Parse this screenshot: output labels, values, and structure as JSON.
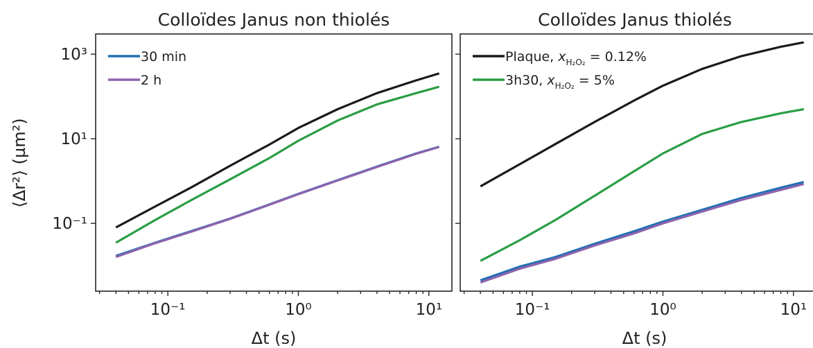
{
  "colors": {
    "black": "#1a1a1a",
    "green": "#2a9d44",
    "blue": "#1f6fb2",
    "purple": "#8e63ad"
  },
  "chart_data": [
    {
      "type": "line",
      "title": "Colloïdes Janus non thiolés",
      "xlabel": "Δt (s)",
      "ylabel": "⟨Δr²⟩ (µm²)",
      "xscale": "log",
      "yscale": "log",
      "xlim": [
        0.028,
        15
      ],
      "ylim": [
        0.0025,
        3000
      ],
      "xticks": [
        {
          "value": 0.1,
          "label": "10⁻¹"
        },
        {
          "value": 1,
          "label": "10⁰"
        },
        {
          "value": 10,
          "label": "10¹"
        }
      ],
      "yticks": [
        {
          "value": 0.1,
          "label": "10⁻¹"
        },
        {
          "value": 10,
          "label": "10¹"
        },
        {
          "value": 1000,
          "label": "10³"
        }
      ],
      "legend": {
        "position": "top-left",
        "entries": [
          {
            "label": "30 min",
            "color": "blue"
          },
          {
            "label": "2 h",
            "color": "purple"
          }
        ]
      },
      "series": [
        {
          "color": "black",
          "x": [
            0.04,
            0.08,
            0.15,
            0.3,
            0.6,
            1,
            2,
            4,
            8,
            12
          ],
          "y": [
            0.08,
            0.25,
            0.7,
            2.3,
            7.3,
            18,
            50,
            120,
            240,
            350
          ]
        },
        {
          "color": "green",
          "x": [
            0.04,
            0.08,
            0.15,
            0.3,
            0.6,
            1,
            2,
            4,
            8,
            12
          ],
          "y": [
            0.035,
            0.12,
            0.35,
            1.1,
            3.5,
            9,
            27,
            65,
            120,
            170
          ]
        },
        {
          "name": "30 min",
          "color": "blue",
          "x": [
            0.04,
            0.08,
            0.15,
            0.3,
            0.6,
            1,
            2,
            4,
            8,
            12
          ],
          "y": [
            0.017,
            0.035,
            0.065,
            0.13,
            0.28,
            0.5,
            1.05,
            2.2,
            4.5,
            6.5
          ]
        },
        {
          "name": "2 h",
          "color": "purple",
          "x": [
            0.04,
            0.08,
            0.15,
            0.3,
            0.6,
            1,
            2,
            4,
            8,
            12
          ],
          "y": [
            0.016,
            0.034,
            0.063,
            0.128,
            0.275,
            0.49,
            1.03,
            2.15,
            4.4,
            6.4
          ]
        }
      ]
    },
    {
      "type": "line",
      "title": "Colloïdes Janus thiolés",
      "xlabel": "Δt (s)",
      "ylabel": "",
      "xscale": "log",
      "yscale": "log",
      "xlim": [
        0.028,
        15
      ],
      "ylim": [
        0.0025,
        3000
      ],
      "xticks": [
        {
          "value": 0.1,
          "label": "10⁻¹"
        },
        {
          "value": 1,
          "label": "10⁰"
        },
        {
          "value": 10,
          "label": "10¹"
        }
      ],
      "yticks": [
        {
          "value": 0.1,
          "label": ""
        },
        {
          "value": 10,
          "label": ""
        },
        {
          "value": 1000,
          "label": ""
        }
      ],
      "legend": {
        "position": "top-left",
        "entries": [
          {
            "label": "Plaque, x",
            "sub": "H₂O₂",
            "suffix": " = 0.12%",
            "color": "black"
          },
          {
            "label": "3h30, x",
            "sub": "H₂O₂",
            "suffix": " = 5%",
            "color": "green"
          }
        ]
      },
      "series": [
        {
          "name": "Plaque, x_H2O2 = 0.12%",
          "color": "black",
          "x": [
            0.04,
            0.08,
            0.15,
            0.3,
            0.6,
            1,
            2,
            4,
            8,
            12
          ],
          "y": [
            0.75,
            2.5,
            7.5,
            25,
            80,
            180,
            450,
            900,
            1500,
            1900
          ]
        },
        {
          "name": "3h30, x_H2O2 = 5%",
          "color": "green",
          "x": [
            0.04,
            0.08,
            0.15,
            0.3,
            0.6,
            1,
            2,
            4,
            8,
            12
          ],
          "y": [
            0.013,
            0.04,
            0.12,
            0.45,
            1.7,
            4.5,
            13,
            25,
            40,
            50
          ]
        },
        {
          "color": "blue",
          "x": [
            0.04,
            0.08,
            0.15,
            0.3,
            0.6,
            1,
            2,
            4,
            8,
            12
          ],
          "y": [
            0.0045,
            0.0095,
            0.016,
            0.033,
            0.065,
            0.11,
            0.21,
            0.4,
            0.7,
            0.95
          ]
        },
        {
          "color": "purple",
          "x": [
            0.04,
            0.08,
            0.15,
            0.3,
            0.6,
            1,
            2,
            4,
            8,
            12
          ],
          "y": [
            0.004,
            0.0085,
            0.0145,
            0.03,
            0.058,
            0.1,
            0.19,
            0.36,
            0.62,
            0.85
          ]
        }
      ]
    }
  ]
}
